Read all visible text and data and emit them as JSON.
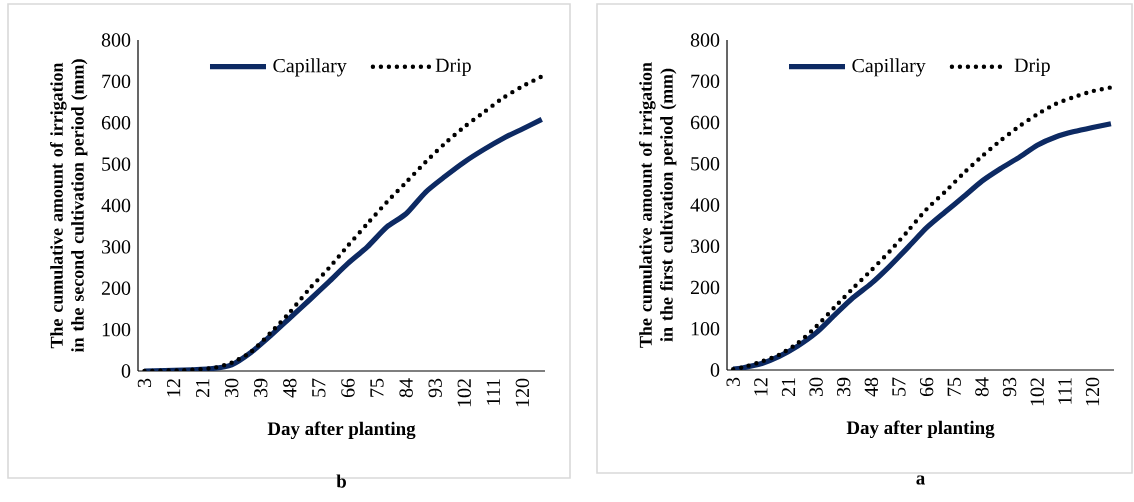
{
  "chart_data": [
    {
      "type": "line",
      "title": "b",
      "xlabel": "Day after planting",
      "ylabel": "The cumulative amount of irrigation in the second cultivation period (mm)",
      "x": [
        3,
        15,
        24,
        30,
        36,
        42,
        48,
        54,
        60,
        66,
        72,
        78,
        84,
        90,
        96,
        102,
        108,
        114,
        120,
        126
      ],
      "series": [
        {
          "name": "Capillary",
          "color": "#0d2a63",
          "line_style": "solid",
          "values": [
            0,
            2,
            6,
            15,
            45,
            85,
            128,
            171,
            215,
            260,
            300,
            348,
            380,
            432,
            470,
            505,
            535,
            562,
            585,
            608
          ]
        },
        {
          "name": "Drip",
          "color": "#000000",
          "line_style": "dotted",
          "values": [
            0,
            2,
            7,
            20,
            46,
            92,
            142,
            198,
            248,
            303,
            356,
            408,
            456,
            505,
            550,
            590,
            625,
            660,
            688,
            712
          ]
        }
      ],
      "xlim": [
        1,
        127
      ],
      "xticks": [
        3,
        12,
        21,
        30,
        39,
        48,
        57,
        66,
        75,
        84,
        93,
        102,
        111,
        120
      ],
      "ylim": [
        0,
        800
      ],
      "yticks": [
        0,
        100,
        200,
        300,
        400,
        500,
        600,
        700,
        800
      ],
      "legend": "top",
      "grid": false
    },
    {
      "type": "line",
      "title": "a",
      "xlabel": "Day after planting",
      "ylabel": "The cumulative amount of irrigation in the first cultivation period (mm)",
      "x": [
        3,
        6,
        12,
        18,
        24,
        30,
        36,
        42,
        48,
        54,
        60,
        66,
        72,
        78,
        84,
        90,
        96,
        102,
        108,
        114,
        120,
        126
      ],
      "series": [
        {
          "name": "Capillary",
          "color": "#0d2a63",
          "line_style": "solid",
          "values": [
            2,
            5,
            15,
            33,
            58,
            90,
            133,
            175,
            210,
            252,
            298,
            345,
            383,
            420,
            458,
            488,
            515,
            545,
            565,
            578,
            588,
            597
          ]
        },
        {
          "name": "Drip",
          "color": "#000000",
          "line_style": "dotted",
          "values": [
            2,
            6,
            20,
            37,
            65,
            105,
            152,
            198,
            242,
            288,
            338,
            390,
            432,
            477,
            518,
            556,
            590,
            620,
            645,
            662,
            676,
            685
          ]
        }
      ],
      "xlim": [
        1,
        127
      ],
      "xticks": [
        3,
        12,
        21,
        30,
        39,
        48,
        57,
        66,
        75,
        84,
        93,
        102,
        111,
        120
      ],
      "ylim": [
        0,
        800
      ],
      "yticks": [
        0,
        100,
        200,
        300,
        400,
        500,
        600,
        700,
        800
      ],
      "legend": "top",
      "grid": false
    }
  ]
}
